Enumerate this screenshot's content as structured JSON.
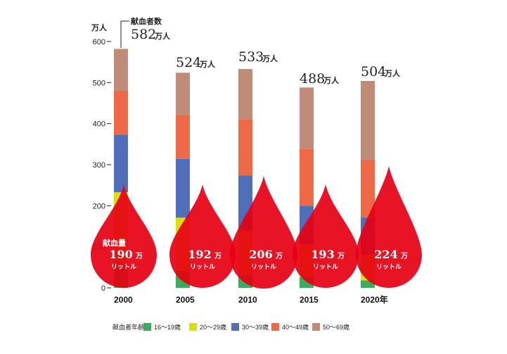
{
  "chart_data": {
    "type": "bar",
    "stacked": true,
    "y_unit_label": "万人",
    "ylim": [
      0,
      600
    ],
    "yticks": [
      0,
      100,
      200,
      300,
      400,
      500,
      600
    ],
    "categories": [
      "2000",
      "2005",
      "2010",
      "2015",
      "2020年"
    ],
    "series": [
      {
        "name": "16～19歳",
        "color": "#3daa5c",
        "values": [
          57,
          41,
          30,
          26,
          18
        ]
      },
      {
        "name": "20～29歳",
        "color": "#dbe000",
        "values": [
          176,
          130,
          108,
          80,
          62
        ]
      },
      {
        "name": "30～39歳",
        "color": "#4f6fbb",
        "values": [
          140,
          143,
          136,
          94,
          92
        ]
      },
      {
        "name": "40～49歳",
        "color": "#ee6a47",
        "values": [
          107,
          106,
          137,
          138,
          140
        ]
      },
      {
        "name": "50～69歳",
        "color": "#bf8c78",
        "values": [
          102,
          104,
          122,
          150,
          192
        ]
      }
    ],
    "total_title": "献血者数",
    "totals": [
      {
        "value": "582",
        "unit": "万人"
      },
      {
        "value": "524",
        "unit": "万人"
      },
      {
        "value": "533",
        "unit": "万人"
      },
      {
        "value": "488",
        "unit": "万人"
      },
      {
        "value": "504",
        "unit": "万人"
      }
    ],
    "volume_title": "献血量",
    "volumes": [
      {
        "value": "190",
        "unit_man": "万",
        "unit": "リットル"
      },
      {
        "value": "192",
        "unit_man": "万",
        "unit": "リットル"
      },
      {
        "value": "206",
        "unit_man": "万",
        "unit": "リットル"
      },
      {
        "value": "193",
        "unit_man": "万",
        "unit": "リットル"
      },
      {
        "value": "224",
        "unit_man": "万",
        "unit": "リットル"
      }
    ],
    "volume_color": "#e60012",
    "legend_title": "献血者年齢",
    "legend_placement": "bottom"
  }
}
